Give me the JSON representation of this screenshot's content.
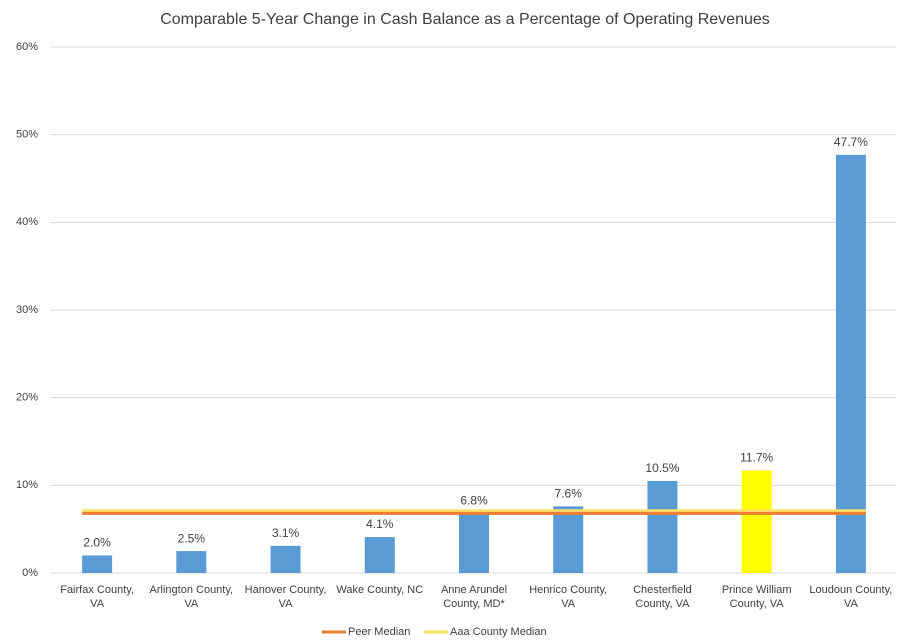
{
  "chart_data": {
    "type": "bar",
    "title": "Comparable 5-Year Change in Cash Balance as a Percentage of Operating Revenues",
    "categories": [
      "Fairfax County, VA",
      "Arlington County, VA",
      "Hanover County, VA",
      "Wake County, NC",
      "Anne Arundel County, MD*",
      "Henrico County, VA",
      "Chesterfield County, VA",
      "Prince William County, VA",
      "Loudoun County, VA"
    ],
    "values": [
      2.0,
      2.5,
      3.1,
      4.1,
      6.8,
      7.6,
      10.5,
      11.7,
      47.7
    ],
    "value_labels": [
      "2.0%",
      "2.5%",
      "3.1%",
      "4.1%",
      "6.8%",
      "7.6%",
      "10.5%",
      "11.7%",
      "47.7%"
    ],
    "colors": [
      "#5b9bd5",
      "#5b9bd5",
      "#5b9bd5",
      "#5b9bd5",
      "#5b9bd5",
      "#5b9bd5",
      "#5b9bd5",
      "#ffff00",
      "#5b9bd5"
    ],
    "reference_lines": [
      {
        "name": "Peer Median",
        "value": 6.8,
        "color": "#ed7d31"
      },
      {
        "name": "Aaa County Median",
        "value": 7.1,
        "color": "#ffe066"
      }
    ],
    "ylim": [
      0,
      60
    ],
    "yticks": [
      {
        "value": 0,
        "label": "0%"
      },
      {
        "value": 10,
        "label": "10%"
      },
      {
        "value": 20,
        "label": "20%"
      },
      {
        "value": 30,
        "label": "30%"
      },
      {
        "value": 40,
        "label": "40%"
      },
      {
        "value": 50,
        "label": "50%"
      },
      {
        "value": 60,
        "label": "60%"
      }
    ],
    "grid": true
  }
}
